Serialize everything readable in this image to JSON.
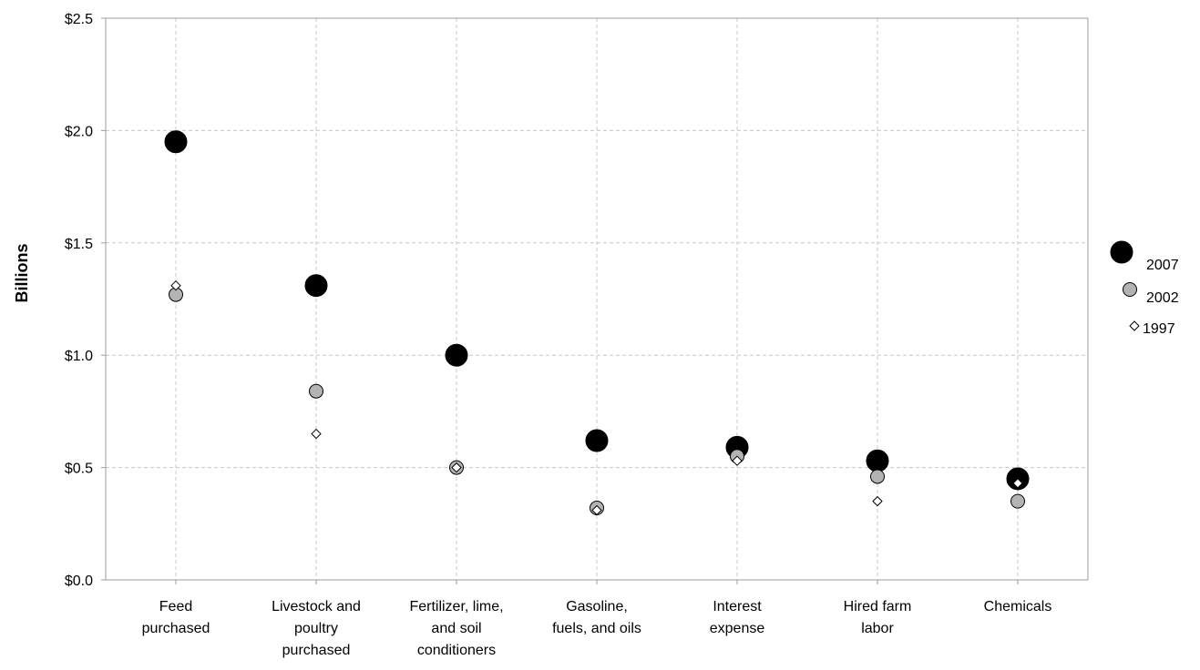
{
  "chart_data": {
    "type": "scatter",
    "ylabel": "Billions",
    "ylim": [
      0,
      2.5
    ],
    "yticks": [
      {
        "value": 0.0,
        "label": "$0.0"
      },
      {
        "value": 0.5,
        "label": "$0.5"
      },
      {
        "value": 1.0,
        "label": "$1.0"
      },
      {
        "value": 1.5,
        "label": "$1.5"
      },
      {
        "value": 2.0,
        "label": "$2.0"
      },
      {
        "value": 2.5,
        "label": "$2.5"
      }
    ],
    "categories": [
      [
        "Feed",
        "purchased"
      ],
      [
        "Livestock and",
        "poultry",
        "purchased"
      ],
      [
        "Fertilizer, lime,",
        "and soil",
        "conditioners"
      ],
      [
        "Gasoline,",
        "fuels, and oils"
      ],
      [
        "Interest",
        "expense"
      ],
      [
        "Hired farm",
        "labor"
      ],
      [
        "Chemicals"
      ]
    ],
    "grid": true,
    "legend_position": "right",
    "series": [
      {
        "name": "2007",
        "marker": "large-circle",
        "color": "#000000",
        "values": [
          1.95,
          1.31,
          1.0,
          0.62,
          0.59,
          0.53,
          0.45
        ]
      },
      {
        "name": "2002",
        "marker": "circle",
        "color": "#b3b3b3",
        "values": [
          1.27,
          0.84,
          0.5,
          0.32,
          0.55,
          0.46,
          0.35
        ]
      },
      {
        "name": "1997",
        "marker": "diamond",
        "color": "#ffffff",
        "values": [
          1.31,
          0.65,
          0.5,
          0.31,
          0.53,
          0.35,
          0.43
        ]
      }
    ]
  }
}
